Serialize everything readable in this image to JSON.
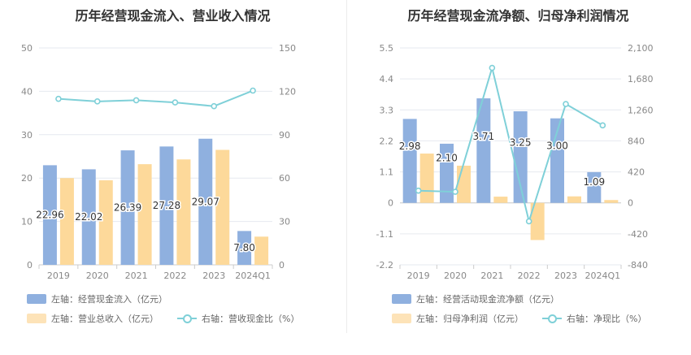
{
  "colors": {
    "blue": "#8fb0df",
    "orange": "#fdd99a",
    "line": "#7fd0d8",
    "grid": "#e6e9ef",
    "axis_text": "#888888",
    "label_text": "#333333"
  },
  "left": {
    "title": "历年经营现金流入、营业收入情况",
    "legend": {
      "bar1": "左轴：经营现金流入（亿元）",
      "bar2": "左轴：营业总收入（亿元）",
      "line": "右轴：营收现金比（%）"
    }
  },
  "right": {
    "title": "历年经营现金流净额、归母净利润情况",
    "legend": {
      "bar1": "左轴：经营活动现金流净额（亿元）",
      "bar2": "左轴：归母净利润（亿元）",
      "line": "右轴：净现比（%）"
    }
  },
  "chart_data": [
    {
      "type": "bar",
      "title": "历年经营现金流入、营业收入情况",
      "categories": [
        "2019",
        "2020",
        "2021",
        "2022",
        "2023",
        "2024Q1"
      ],
      "y_left": {
        "ticks": [
          "0",
          "10",
          "20",
          "30",
          "40",
          "50"
        ],
        "lim": [
          0,
          50
        ]
      },
      "y_right": {
        "ticks": [
          "0",
          "30",
          "60",
          "90",
          "120",
          "150"
        ],
        "lim": [
          0,
          150
        ]
      },
      "series": [
        {
          "name": "左轴：经营现金流入（亿元）",
          "axis": "left",
          "type": "bar",
          "values": [
            22.96,
            22.02,
            26.39,
            27.28,
            29.07,
            7.8
          ],
          "labels": [
            "22.96",
            "22.02",
            "26.39",
            "27.28",
            "29.07",
            "7.80"
          ]
        },
        {
          "name": "左轴：营业总收入（亿元）",
          "axis": "left",
          "type": "bar",
          "values": [
            20.0,
            19.5,
            23.2,
            24.3,
            26.5,
            6.5
          ]
        },
        {
          "name": "右轴：营收现金比（%）",
          "axis": "right",
          "type": "line",
          "values": [
            114.8,
            113.0,
            113.8,
            112.3,
            109.7,
            120.5
          ]
        }
      ],
      "grid": true,
      "legend_position": "bottom-left"
    },
    {
      "type": "bar",
      "title": "历年经营现金流净额、归母净利润情况",
      "categories": [
        "2019",
        "2020",
        "2021",
        "2022",
        "2023",
        "2024Q1"
      ],
      "y_left": {
        "ticks": [
          "-2.2",
          "-1.1",
          "0",
          "1.1",
          "2.2",
          "3.3",
          "4.4",
          "5.5"
        ],
        "lim": [
          -2.2,
          5.5
        ]
      },
      "y_right": {
        "ticks": [
          "-840",
          "-420",
          "0",
          "420",
          "840",
          "1,260",
          "1,680",
          "2,100"
        ],
        "lim": [
          -840,
          2100
        ]
      },
      "series": [
        {
          "name": "左轴：经营活动现金流净额（亿元）",
          "axis": "left",
          "type": "bar",
          "values": [
            2.98,
            2.1,
            3.71,
            3.25,
            3.0,
            1.09
          ],
          "labels": [
            "2.98",
            "2.10",
            "3.71",
            "3.25",
            "3.00",
            "1.09"
          ]
        },
        {
          "name": "左轴：归母净利润（亿元）",
          "axis": "left",
          "type": "bar",
          "values": [
            1.75,
            1.32,
            0.22,
            -1.32,
            0.23,
            0.1
          ]
        },
        {
          "name": "右轴：净现比（%）",
          "axis": "right",
          "type": "line",
          "values": [
            165,
            150,
            1830,
            -250,
            1340,
            1050
          ]
        }
      ],
      "grid": true,
      "legend_position": "bottom-left"
    }
  ]
}
